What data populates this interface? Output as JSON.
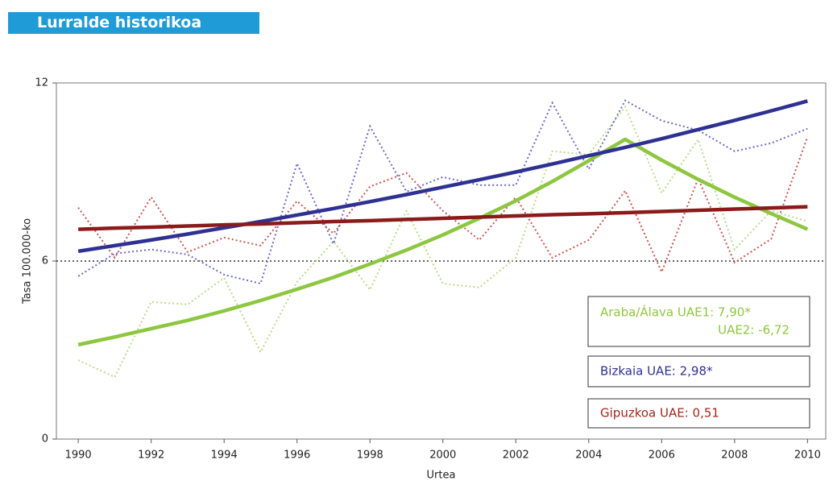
{
  "header": {
    "title": "Lurralde historikoa"
  },
  "chart_data": {
    "type": "line",
    "ylabel": "Tasa 100.000-ko",
    "xlabel": "Urtea",
    "x": [
      1990,
      1991,
      1992,
      1993,
      1994,
      1995,
      1996,
      1997,
      1998,
      1999,
      2000,
      2001,
      2002,
      2003,
      2004,
      2005,
      2006,
      2007,
      2008,
      2009,
      2010
    ],
    "xlim": [
      1989.4,
      2010.5
    ],
    "xticks": [
      1990,
      1992,
      1994,
      1996,
      1998,
      2000,
      2002,
      2004,
      2006,
      2008,
      2010
    ],
    "ylim": [
      0,
      12
    ],
    "yticks": [
      0,
      6,
      12
    ],
    "hline": 6,
    "series": [
      {
        "color": "#8dc63f",
        "dot_color": "#b9dc8c",
        "values": [
          2.66,
          2.09,
          4.62,
          4.54,
          5.43,
          2.93,
          5.3,
          6.66,
          5.03,
          7.69,
          5.24,
          5.11,
          6.11,
          9.7,
          9.59,
          11.2,
          8.29,
          10.1,
          6.39,
          7.69,
          7.34
        ],
        "trend": [
          3.18,
          3.44,
          3.72,
          4.0,
          4.32,
          4.67,
          5.05,
          5.45,
          5.9,
          6.37,
          6.88,
          7.44,
          8.03,
          8.68,
          9.38,
          10.1,
          9.4,
          8.75,
          8.15,
          7.6,
          7.07
        ]
      },
      {
        "color": "#2e3192",
        "dot_color": "#6b6bc9",
        "values": [
          5.49,
          6.25,
          6.39,
          6.22,
          5.54,
          5.24,
          9.29,
          6.58,
          10.54,
          8.34,
          8.83,
          8.56,
          8.56,
          11.33,
          9.1,
          11.41,
          10.73,
          10.41,
          9.7,
          9.97,
          10.46
        ],
        "trend": [
          6.33,
          6.52,
          6.71,
          6.91,
          7.12,
          7.33,
          7.55,
          7.77,
          8.0,
          8.24,
          8.49,
          8.74,
          9.0,
          9.27,
          9.55,
          9.83,
          10.12,
          10.43,
          10.74,
          11.06,
          11.39
        ]
      },
      {
        "color": "#8b1a1a",
        "dot_color": "#c8574f",
        "values": [
          7.8,
          6.11,
          8.15,
          6.3,
          6.79,
          6.52,
          8.02,
          6.93,
          8.51,
          8.97,
          7.69,
          6.71,
          8.15,
          6.11,
          6.71,
          8.37,
          5.63,
          8.78,
          5.95,
          6.74,
          10.19
        ],
        "trend": [
          7.07,
          7.11,
          7.14,
          7.18,
          7.22,
          7.25,
          7.29,
          7.33,
          7.36,
          7.4,
          7.44,
          7.48,
          7.52,
          7.56,
          7.59,
          7.63,
          7.67,
          7.71,
          7.75,
          7.79,
          7.83
        ]
      }
    ],
    "annotations": [
      {
        "color": "#8dc63f",
        "lines": [
          "Araba/Álava UAE1: 7,90*",
          "UAE2: -6,72"
        ]
      },
      {
        "color": "#2e3192",
        "lines": [
          "Bizkaia UAE: 2,98*"
        ]
      },
      {
        "color": "#a0281e",
        "lines": [
          "Gipuzkoa UAE: 0,51"
        ]
      }
    ]
  }
}
